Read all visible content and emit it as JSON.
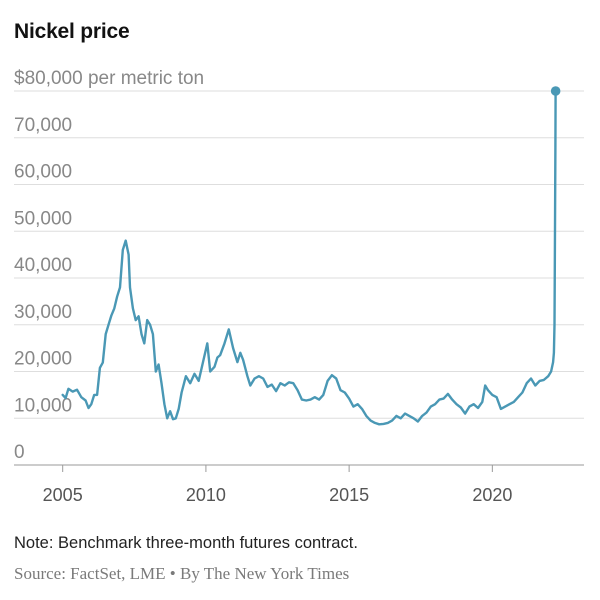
{
  "chart_data": {
    "type": "line",
    "title": "Nickel price",
    "ylabel": "per metric ton",
    "ylim": [
      0,
      80000
    ],
    "xlim": [
      2003.3,
      2023.2
    ],
    "y_ticks": [
      {
        "value": 80000,
        "label": "$80,000 per metric ton"
      },
      {
        "value": 70000,
        "label": "70,000"
      },
      {
        "value": 60000,
        "label": "60,000"
      },
      {
        "value": 50000,
        "label": "50,000"
      },
      {
        "value": 40000,
        "label": "40,000"
      },
      {
        "value": 30000,
        "label": "30,000"
      },
      {
        "value": 20000,
        "label": "20,000"
      },
      {
        "value": 10000,
        "label": "10,000"
      },
      {
        "value": 0,
        "label": "0"
      }
    ],
    "x_ticks": [
      {
        "value": 2005,
        "label": "2005"
      },
      {
        "value": 2010,
        "label": "2010"
      },
      {
        "value": 2015,
        "label": "2015"
      },
      {
        "value": 2020,
        "label": "2020"
      }
    ],
    "series": [
      {
        "name": "Nickel price",
        "color": "#4a98b5",
        "x": [
          2005.0,
          2005.1,
          2005.2,
          2005.35,
          2005.5,
          2005.65,
          2005.8,
          2005.9,
          2006.0,
          2006.1,
          2006.2,
          2006.3,
          2006.4,
          2006.5,
          2006.6,
          2006.7,
          2006.8,
          2006.9,
          2007.0,
          2007.1,
          2007.2,
          2007.3,
          2007.35,
          2007.45,
          2007.55,
          2007.65,
          2007.75,
          2007.85,
          2007.95,
          2008.05,
          2008.15,
          2008.25,
          2008.35,
          2008.45,
          2008.55,
          2008.65,
          2008.75,
          2008.85,
          2008.95,
          2009.05,
          2009.15,
          2009.3,
          2009.45,
          2009.6,
          2009.75,
          2009.9,
          2010.05,
          2010.15,
          2010.3,
          2010.4,
          2010.5,
          2010.65,
          2010.8,
          2010.95,
          2011.1,
          2011.2,
          2011.3,
          2011.45,
          2011.55,
          2011.7,
          2011.85,
          2012.0,
          2012.15,
          2012.3,
          2012.45,
          2012.6,
          2012.75,
          2012.9,
          2013.05,
          2013.2,
          2013.35,
          2013.5,
          2013.65,
          2013.8,
          2013.95,
          2014.1,
          2014.25,
          2014.4,
          2014.55,
          2014.7,
          2014.85,
          2015.0,
          2015.15,
          2015.3,
          2015.45,
          2015.6,
          2015.75,
          2015.9,
          2016.05,
          2016.2,
          2016.35,
          2016.5,
          2016.65,
          2016.8,
          2016.95,
          2017.1,
          2017.25,
          2017.4,
          2017.55,
          2017.7,
          2017.85,
          2018.0,
          2018.15,
          2018.3,
          2018.45,
          2018.6,
          2018.75,
          2018.9,
          2019.05,
          2019.2,
          2019.35,
          2019.5,
          2019.65,
          2019.75,
          2019.85,
          2020.0,
          2020.15,
          2020.3,
          2020.45,
          2020.6,
          2020.75,
          2020.9,
          2021.05,
          2021.2,
          2021.35,
          2021.5,
          2021.65,
          2021.8,
          2021.95,
          2022.05,
          2022.12,
          2022.15,
          2022.17,
          2022.18,
          2022.19,
          2022.2,
          2022.21
        ],
        "values": [
          15000,
          14300,
          16300,
          15700,
          16100,
          14500,
          13800,
          12200,
          13000,
          15000,
          15000,
          20800,
          21900,
          28000,
          30000,
          32000,
          33500,
          36000,
          38000,
          46000,
          48000,
          45000,
          38000,
          33500,
          31000,
          31800,
          28000,
          26000,
          31000,
          30000,
          28000,
          20000,
          21500,
          17500,
          13000,
          10000,
          11500,
          9800,
          10000,
          12000,
          15500,
          19000,
          17500,
          19500,
          18000,
          22000,
          26000,
          20000,
          21000,
          23000,
          23500,
          26000,
          29000,
          25000,
          22000,
          24000,
          22500,
          19000,
          17000,
          18500,
          19000,
          18500,
          16700,
          17200,
          15800,
          17500,
          17000,
          17700,
          17500,
          16000,
          14000,
          13800,
          14000,
          14500,
          14000,
          15000,
          18000,
          19200,
          18500,
          16000,
          15500,
          14200,
          12500,
          13000,
          12000,
          10500,
          9500,
          9000,
          8700,
          8800,
          9000,
          9500,
          10500,
          10000,
          11000,
          10500,
          10000,
          9300,
          10500,
          11200,
          12500,
          13000,
          14000,
          14200,
          15200,
          14000,
          13000,
          12300,
          11000,
          12500,
          13000,
          12200,
          13500,
          17000,
          16000,
          15000,
          14500,
          12000,
          12500,
          13000,
          13500,
          14500,
          15500,
          17500,
          18500,
          17000,
          18000,
          18200,
          19000,
          20000,
          22000,
          24000,
          30000,
          42000,
          55000,
          68000,
          80000
        ]
      }
    ],
    "last_point_marker": true
  },
  "footer": {
    "note": "Note: Benchmark three-month futures contract.",
    "source": "Source: FactSet, LME • By The New York Times"
  }
}
